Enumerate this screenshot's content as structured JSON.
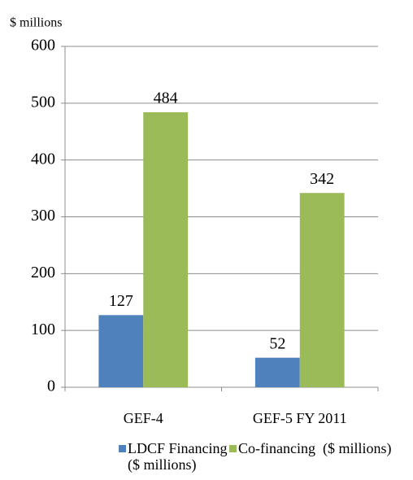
{
  "chart_data": {
    "type": "bar",
    "y_label": "$ millions",
    "categories": [
      "GEF-4",
      "GEF-5 FY 2011"
    ],
    "series": [
      {
        "name": "LDCF Financing ($ millions)",
        "color": "#4f81bd",
        "values": [
          127,
          52
        ]
      },
      {
        "name": "Co-financing  ($ millions)",
        "color": "#9bbb59",
        "values": [
          484,
          342
        ]
      }
    ],
    "ylim": [
      0,
      600
    ],
    "yticks": [
      0,
      100,
      200,
      300,
      400,
      500,
      600
    ],
    "grid": true,
    "legend": "bottom"
  }
}
